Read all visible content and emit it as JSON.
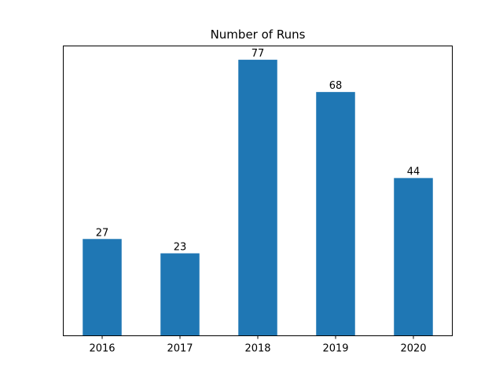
{
  "chart_data": {
    "type": "bar",
    "title": "Number of Runs",
    "xlabel": "",
    "ylabel": "",
    "categories": [
      "2016",
      "2017",
      "2018",
      "2019",
      "2020"
    ],
    "values": [
      27,
      23,
      77,
      68,
      44
    ],
    "data_labels": [
      "27",
      "23",
      "77",
      "68",
      "44"
    ],
    "ylim": [
      0,
      80.85
    ],
    "y_ticks_visible": false,
    "grid": false,
    "legend": "none",
    "bar_color": "#1f77b4"
  }
}
